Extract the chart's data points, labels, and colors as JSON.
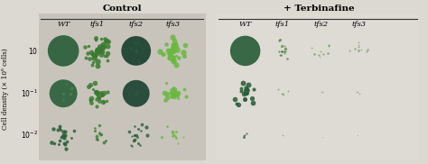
{
  "fig_width": 4.74,
  "fig_height": 1.82,
  "dpi": 100,
  "bg_color": "#dcd8d2",
  "left_panel_bg": "#c8c4bc",
  "right_panel_bg": "#dedad4",
  "title_left": "Control",
  "title_right": "+ Terbinafine",
  "col_labels": [
    "WT",
    "tfs1",
    "tfs2",
    "tfs3"
  ],
  "y_label": "Cell density (× 10⁶ cells)",
  "green_dark": "#2a5e3a",
  "green_mid": "#3a7a30",
  "green_bright": "#6ab840",
  "green_pale": "#8acc60",
  "aspect_ratio": 2.604
}
